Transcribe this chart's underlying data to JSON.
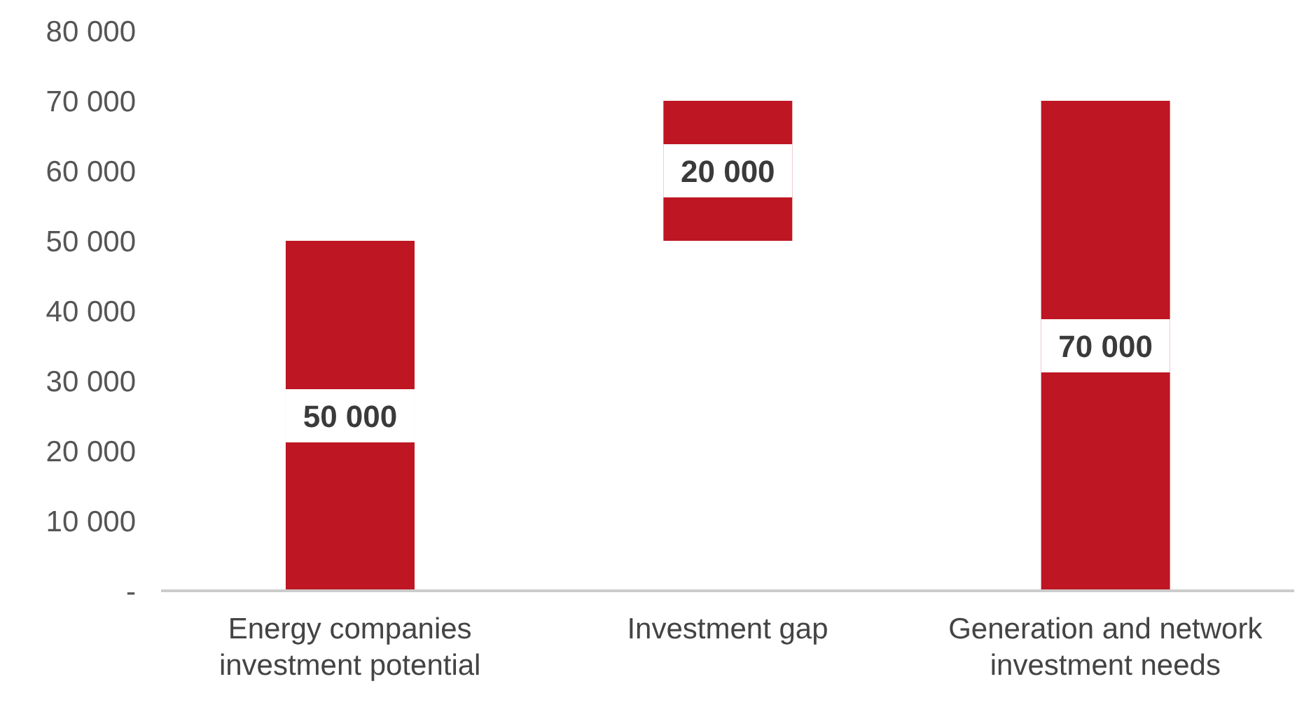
{
  "chart_data": {
    "type": "bar",
    "categories": [
      "Energy companies investment potential",
      "Investment gap",
      "Generation and network investment needs"
    ],
    "values": [
      50000,
      20000,
      70000
    ],
    "base": [
      0,
      50000,
      0
    ],
    "color": "#be1622",
    "value_labels": [
      "50 000",
      "20 000",
      "70 000"
    ],
    "ylim": [
      0,
      80000
    ],
    "yticks": [
      {
        "value": 0,
        "label": "-"
      },
      {
        "value": 10000,
        "label": "10 000"
      },
      {
        "value": 20000,
        "label": "20 000"
      },
      {
        "value": 30000,
        "label": "30 000"
      },
      {
        "value": 40000,
        "label": "40 000"
      },
      {
        "value": 50000,
        "label": "50 000"
      },
      {
        "value": 60000,
        "label": "60 000"
      },
      {
        "value": 70000,
        "label": "70 000"
      },
      {
        "value": 80000,
        "label": "80 000"
      }
    ]
  }
}
